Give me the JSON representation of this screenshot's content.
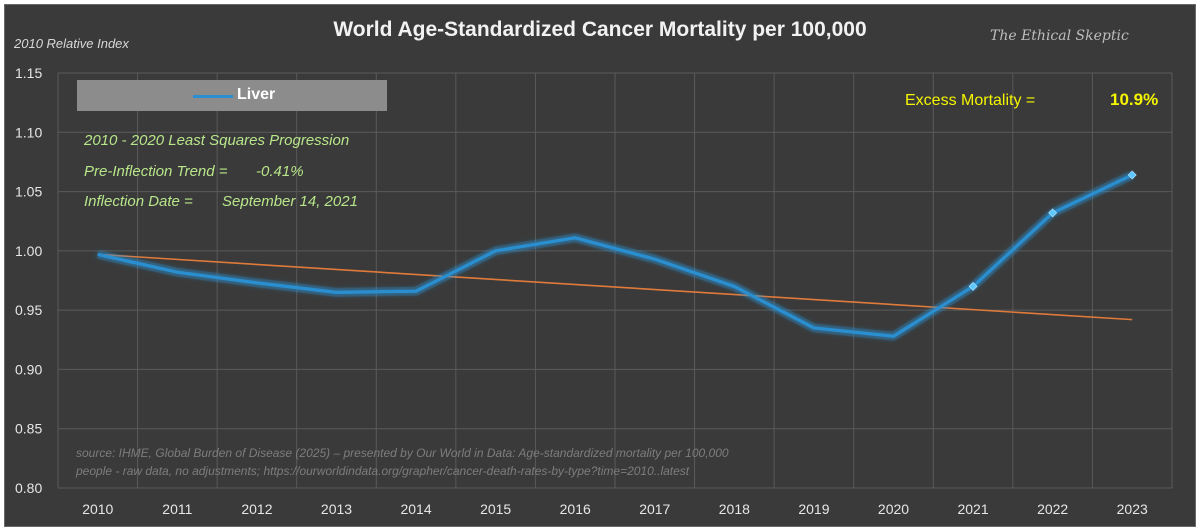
{
  "chart_data": {
    "type": "line",
    "title": "World Age-Standardized Cancer Mortality per 100,000",
    "ylabel": "2010 Relative Index",
    "ylim": [
      0.8,
      1.15
    ],
    "yticks": [
      "1.15",
      "1.10",
      "1.05",
      "1.00",
      "0.95",
      "0.90",
      "0.85",
      "0.80"
    ],
    "x": [
      "2010",
      "2011",
      "2012",
      "2013",
      "2014",
      "2015",
      "2016",
      "2017",
      "2018",
      "2019",
      "2020",
      "2021",
      "2022",
      "2023"
    ],
    "legend_position": "top-left",
    "grid": true,
    "series": [
      {
        "name": "Liver",
        "color": "#2a8fd0",
        "values": [
          0.997,
          0.982,
          0.973,
          0.965,
          0.966,
          1.0,
          1.011,
          0.993,
          0.97,
          0.935,
          0.928,
          0.97,
          1.032,
          1.064
        ],
        "highlighted_points": [
          "2021",
          "2022",
          "2023"
        ]
      },
      {
        "name": "",
        "role": "2010 - 2020 least squares trend",
        "color": "#e07a3a",
        "x_start": "2010",
        "x_end": "2023",
        "y_start": 0.997,
        "y_end": 0.942
      }
    ],
    "annotations": {
      "progression": "2010 - 2020 Least Squares Progression",
      "trend_label": "Pre-Inflection Trend =",
      "trend_value": "-0.41%",
      "inflection_label": "Inflection Date =",
      "inflection_value": "September 14, 2021",
      "excess_label": "Excess Mortality =",
      "excess_value": "10.9%"
    }
  },
  "brand": "The Ethical Skeptic",
  "source_line1": "source: IHME, Global Burden of Disease (2025) – presented by Our World in Data: Age-standardized mortality per 100,000",
  "source_line2": "people - raw data, no adjustments; https://ourworldindata.org/grapher/cancer-death-rates-by-type?time=2010..latest",
  "colors": {
    "background": "#3a3a3a",
    "grid": "#5a5a5a",
    "annotation_green": "#b8e68a",
    "highlight_yellow": "#f5f500"
  }
}
